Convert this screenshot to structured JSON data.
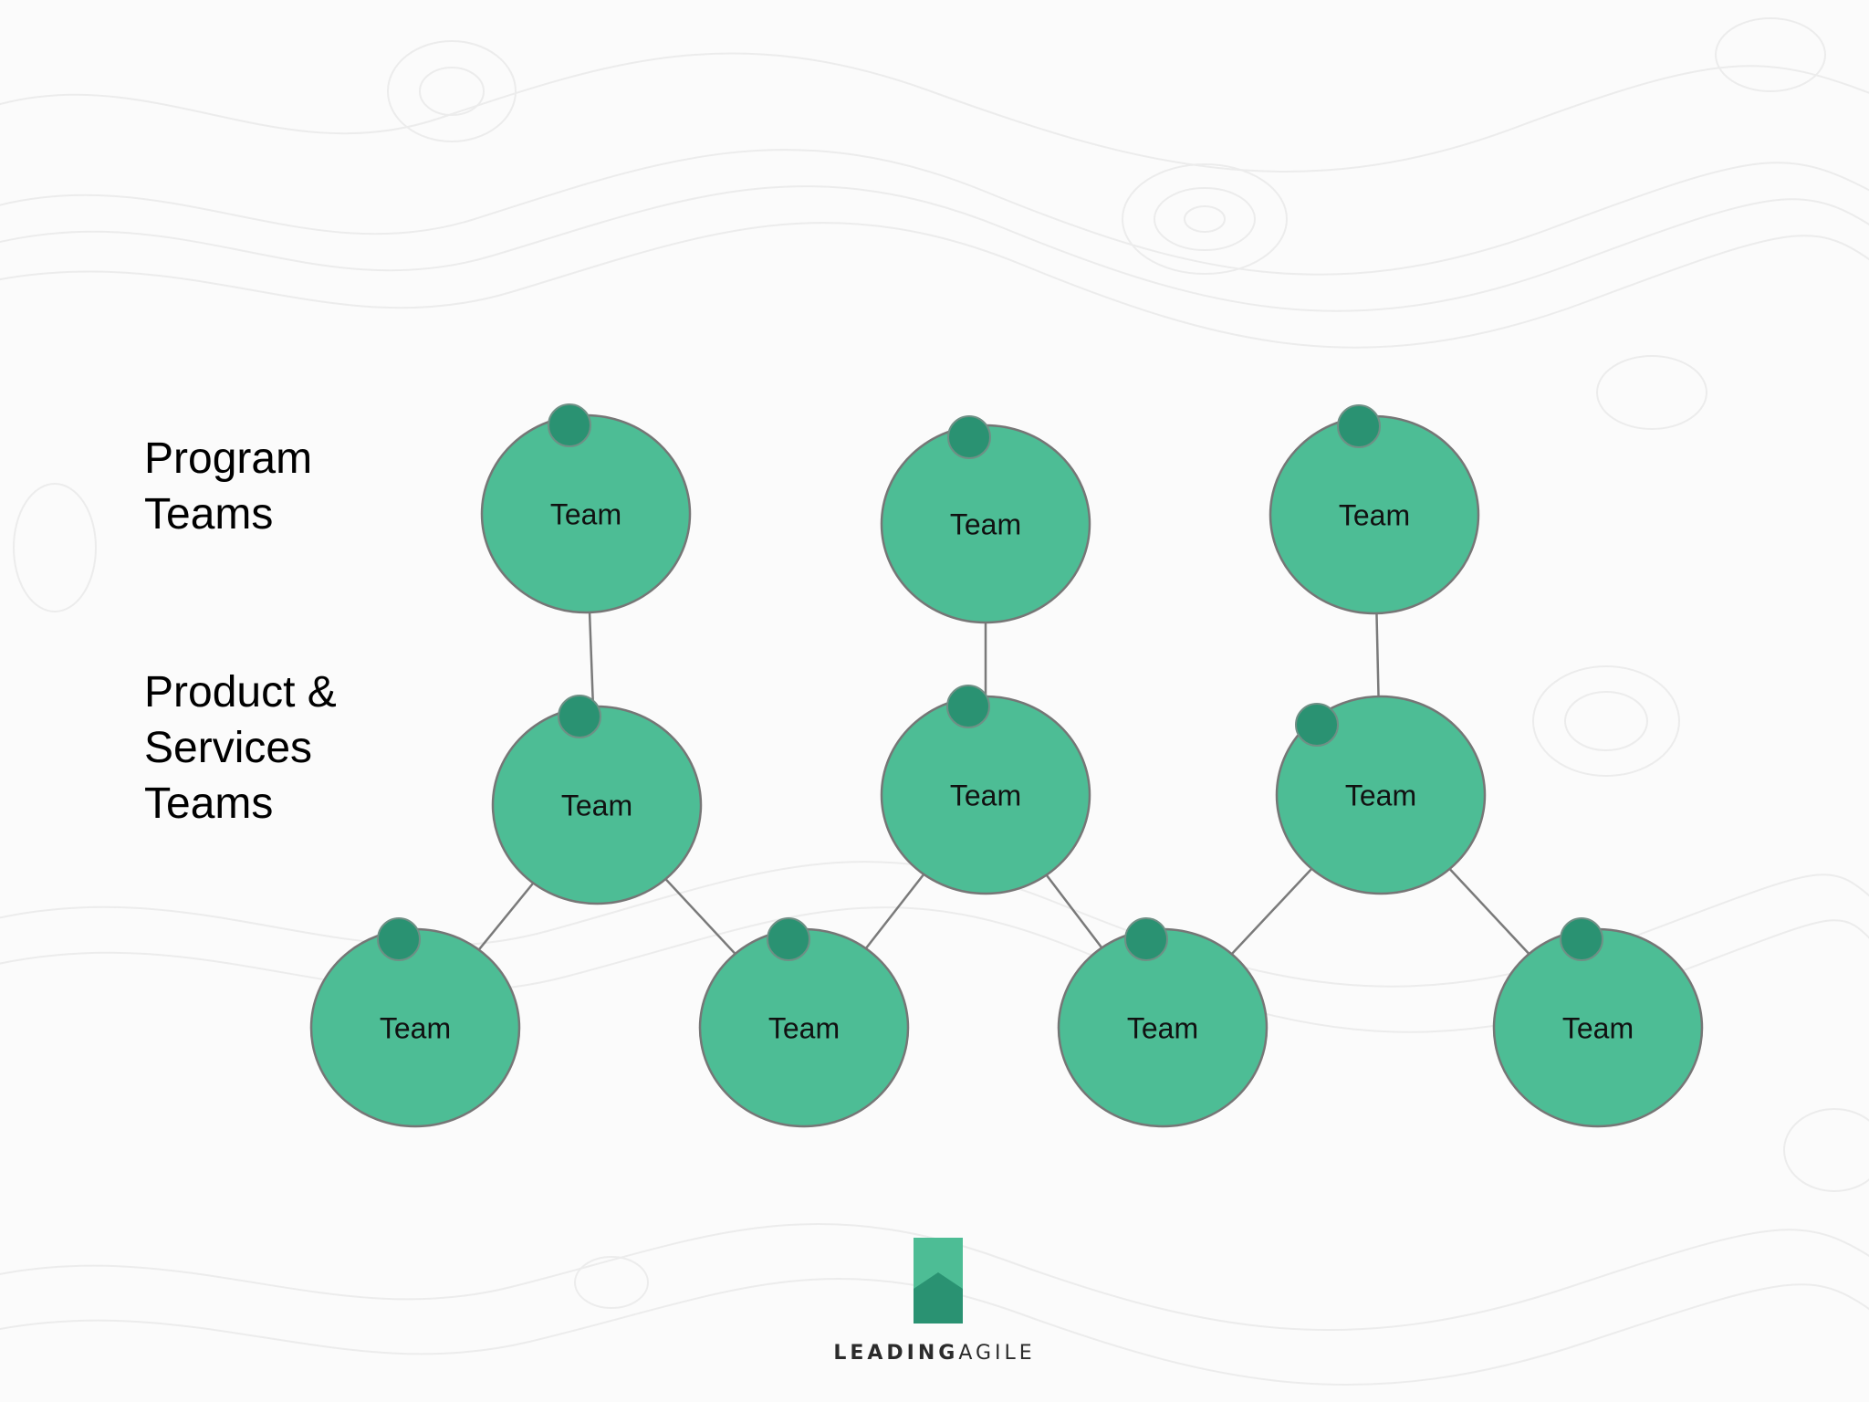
{
  "labels": {
    "program": [
      "Program",
      "Teams"
    ],
    "product": [
      "Product &",
      "Services",
      "Teams"
    ]
  },
  "node_label": "Team",
  "nodes": [
    {
      "id": "program-1",
      "row": "program",
      "label": "Team"
    },
    {
      "id": "program-2",
      "row": "program",
      "label": "Team"
    },
    {
      "id": "program-3",
      "row": "program",
      "label": "Team"
    },
    {
      "id": "product-1",
      "row": "product",
      "label": "Team"
    },
    {
      "id": "product-2",
      "row": "product",
      "label": "Team"
    },
    {
      "id": "product-3",
      "row": "product",
      "label": "Team"
    },
    {
      "id": "delivery-1",
      "row": "delivery",
      "label": "Team"
    },
    {
      "id": "delivery-2",
      "row": "delivery",
      "label": "Team"
    },
    {
      "id": "delivery-3",
      "row": "delivery",
      "label": "Team"
    },
    {
      "id": "delivery-4",
      "row": "delivery",
      "label": "Team"
    }
  ],
  "edges": [
    [
      "program-1",
      "product-1"
    ],
    [
      "program-2",
      "product-2"
    ],
    [
      "program-3",
      "product-3"
    ],
    [
      "product-1",
      "delivery-1"
    ],
    [
      "product-1",
      "delivery-2"
    ],
    [
      "product-2",
      "delivery-2"
    ],
    [
      "product-2",
      "delivery-3"
    ],
    [
      "product-3",
      "delivery-3"
    ],
    [
      "product-3",
      "delivery-4"
    ]
  ],
  "logo": {
    "text_bold": "LEADING",
    "text_light": "AGILE"
  },
  "colors": {
    "node_fill": "#4dbd95",
    "node_dot": "#2a9272",
    "node_stroke": "#767676",
    "connector": "#7a7a7a",
    "logo_light": "#4dbd95",
    "logo_dark": "#2a9272",
    "background": "#fbfbfb",
    "contour": "#ebebeb"
  }
}
